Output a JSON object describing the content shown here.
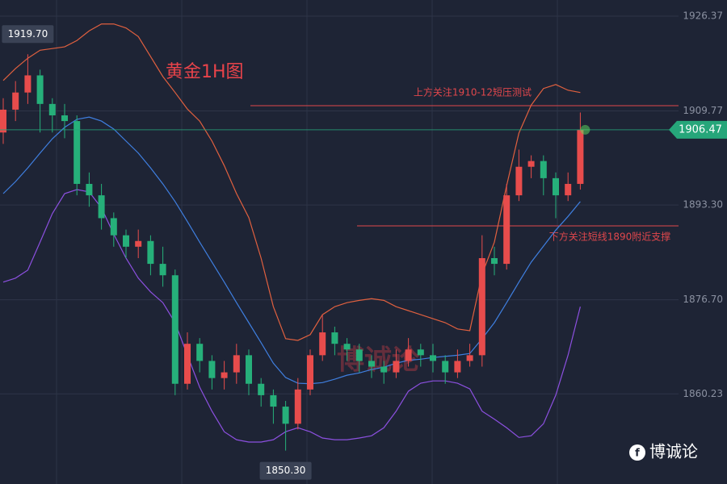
{
  "chart_data": {
    "type": "candlestick",
    "title": "黄金1H图",
    "watermark": "博诚论",
    "high_label": "1919.70",
    "low_label": "1850.30",
    "up_color": "#e74c4c",
    "down_color": "#26b07a",
    "ylim": [
      1844.45,
      1929.2
    ],
    "yticks": [
      1926.37,
      1909.77,
      {
        "value": 1893.3,
        "label": "1893.30"
      },
      {
        "value": 1876.7,
        "label": "1876.70"
      },
      1860.23
    ],
    "grid": true,
    "open": [
      1906,
      1910,
      1913,
      1916,
      1911,
      1909,
      1908,
      1897,
      1895,
      1891,
      1888,
      1886,
      1887,
      1883,
      1881,
      1862,
      1869,
      1866,
      1863,
      1864,
      1867,
      1862,
      1860,
      1858,
      1855,
      1861,
      1867,
      1871,
      1869,
      1868,
      1866,
      1865,
      1864,
      1866,
      1868,
      1867,
      1866,
      1864,
      1866,
      1867,
      1884,
      1883,
      1895,
      1900,
      1901,
      1898,
      1895,
      1897
    ],
    "high": [
      1912,
      1915,
      1919.7,
      1917,
      1912,
      1911,
      1909,
      1899,
      1897,
      1892,
      1889,
      1889,
      1888,
      1886,
      1882,
      1871,
      1870,
      1867,
      1866,
      1869,
      1868,
      1863,
      1861,
      1859,
      1863,
      1868,
      1874,
      1872,
      1870,
      1869,
      1867,
      1866,
      1868,
      1870,
      1869,
      1869,
      1867,
      1868,
      1869,
      1888,
      1886,
      1897,
      1903,
      1902,
      1902,
      1899,
      1899,
      1909.5
    ],
    "low": [
      1904,
      1908,
      1911,
      1906,
      1906,
      1905,
      1895,
      1893,
      1889,
      1886,
      1884,
      1884,
      1881,
      1879,
      1860,
      1861,
      1864,
      1861,
      1861,
      1862,
      1860,
      1858,
      1855,
      1850.3,
      1854,
      1860,
      1866,
      1867,
      1866,
      1864,
      1863,
      1862,
      1863,
      1865,
      1865,
      1864,
      1862,
      1863,
      1865,
      1865,
      1881,
      1882,
      1894,
      1898,
      1895,
      1891,
      1894,
      1896
    ],
    "close": [
      1910,
      1913,
      1916,
      1911,
      1909,
      1908,
      1897,
      1895,
      1891,
      1888,
      1886,
      1887,
      1883,
      1881,
      1862,
      1869,
      1866,
      1863,
      1864,
      1867,
      1862,
      1860,
      1858,
      1855,
      1861,
      1867,
      1871,
      1869,
      1868,
      1866,
      1865,
      1864,
      1866,
      1868,
      1867,
      1866,
      1864,
      1866,
      1867,
      1884,
      1883,
      1895,
      1900,
      1901,
      1898,
      1895,
      1897,
      1906.47
    ],
    "bands": [
      {
        "color": "#e0603f",
        "values": [
          1915.1,
          1917.2,
          1919.0,
          1920.4,
          1920.7,
          1921.0,
          1922.1,
          1923.8,
          1925.0,
          1925.0,
          1924.3,
          1922.8,
          1919.3,
          1915.8,
          1913.0,
          1910.1,
          1908.0,
          1904.5,
          1900.2,
          1895.3,
          1891.1,
          1884.0,
          1875.5,
          1869.9,
          1869.6,
          1870.6,
          1874.1,
          1875.5,
          1876.2,
          1876.6,
          1876.9,
          1876.6,
          1875.5,
          1874.8,
          1874.1,
          1873.4,
          1872.7,
          1871.6,
          1871.3,
          1881.2,
          1886.8,
          1896.7,
          1905.9,
          1910.8,
          1913.7,
          1914.4,
          1913.4,
          1913.0
        ]
      },
      {
        "color": "#3f7fe0",
        "values": [
          1895.3,
          1897.4,
          1899.8,
          1902.4,
          1904.9,
          1906.9,
          1908.3,
          1908.7,
          1908.0,
          1906.6,
          1904.5,
          1902.4,
          1899.8,
          1897.0,
          1893.9,
          1890.4,
          1886.8,
          1883.3,
          1879.8,
          1876.2,
          1872.7,
          1869.2,
          1865.6,
          1863.1,
          1862.1,
          1862.0,
          1862.2,
          1862.8,
          1863.5,
          1863.9,
          1864.5,
          1864.9,
          1865.6,
          1866.1,
          1866.3,
          1866.6,
          1866.8,
          1867.0,
          1867.3,
          1869.9,
          1872.7,
          1876.2,
          1879.8,
          1883.3,
          1886.1,
          1888.9,
          1891.3,
          1893.9
        ]
      },
      {
        "color": "#8c50e0",
        "values": [
          1879.8,
          1880.5,
          1881.9,
          1886.8,
          1891.8,
          1895.3,
          1896.0,
          1895.6,
          1892.8,
          1888.2,
          1884.0,
          1880.5,
          1878.1,
          1876.2,
          1872.7,
          1867.0,
          1861.4,
          1857.2,
          1853.6,
          1852.2,
          1851.8,
          1851.8,
          1852.2,
          1853.6,
          1854.3,
          1853.6,
          1852.5,
          1852.2,
          1852.2,
          1852.5,
          1852.9,
          1854.3,
          1857.2,
          1860.7,
          1862.1,
          1862.5,
          1862.5,
          1862.1,
          1861.1,
          1857.2,
          1855.8,
          1854.3,
          1852.6,
          1852.9,
          1855.0,
          1860.0,
          1867.0,
          1875.5
        ]
      }
    ],
    "hlines": [
      {
        "value": 1910.7,
        "label": "上方关注1910-12短压测试",
        "color": "#e0474c"
      },
      {
        "value": 1889.65,
        "label": "下方关注短线1890附近支撑",
        "color": "#e0474c"
      }
    ],
    "last_color": "#26a67a"
  }
}
